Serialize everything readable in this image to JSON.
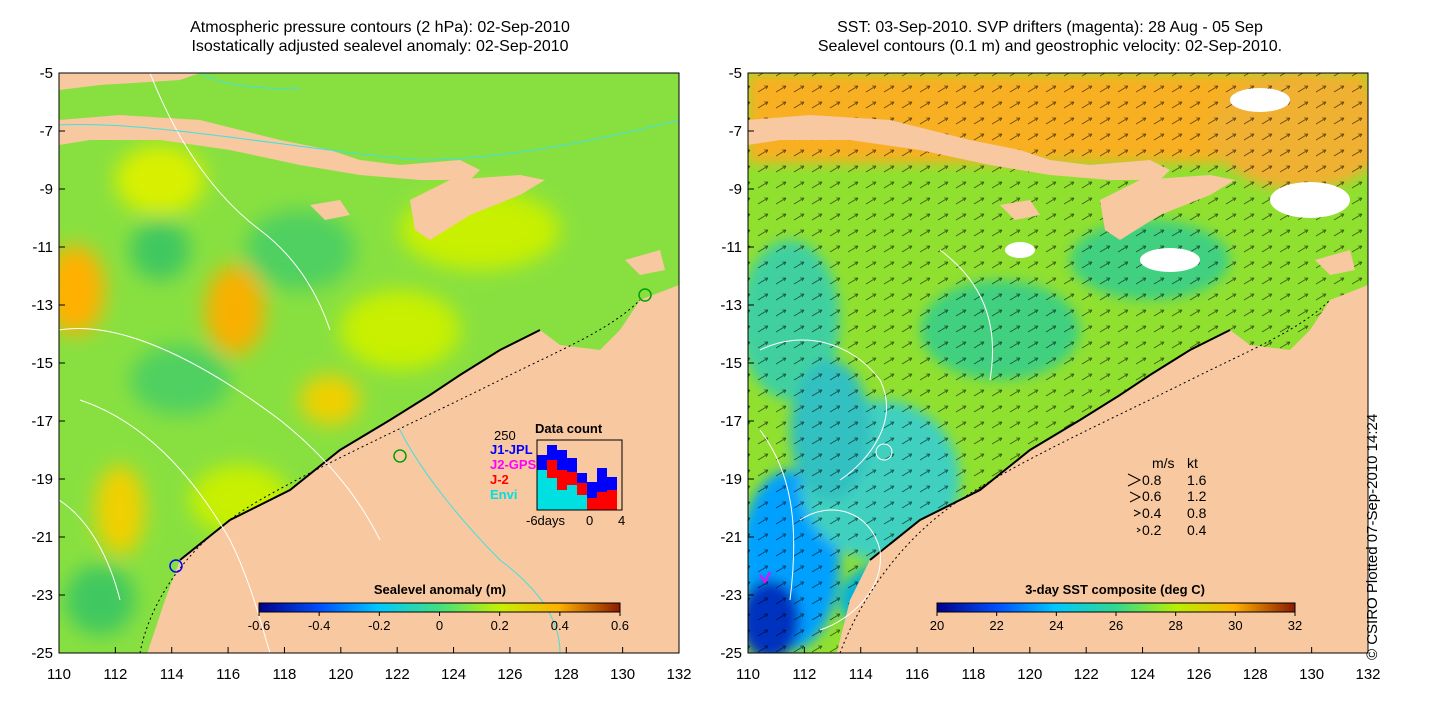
{
  "left_panel": {
    "title_line1": "Atmospheric pressure contours (2 hPa): 02-Sep-2010",
    "title_line2": "Isostatically adjusted sealevel anomaly: 02-Sep-2010",
    "colorbar": {
      "title": "Sealevel anomaly (m)",
      "ticks": [
        "-0.6",
        "-0.4",
        "-0.2",
        "0",
        "0.2",
        "0.4",
        "0.6"
      ],
      "colors": [
        "#00008b",
        "#0050ff",
        "#00c8ff",
        "#40e080",
        "#c8f000",
        "#ffb000",
        "#8b1a00"
      ]
    },
    "inset": {
      "title": "Data count",
      "max_label": "250",
      "missions": [
        {
          "name": "J1-JPL",
          "color": "#0000ff"
        },
        {
          "name": "J2-GPS",
          "color": "#ff00ff"
        },
        {
          "name": "J-2",
          "color": "#ff0000"
        },
        {
          "name": "Envi",
          "color": "#00e0e0"
        }
      ],
      "x_labels": [
        "-6days",
        "0",
        "4"
      ]
    }
  },
  "right_panel": {
    "title_line1": "SST: 03-Sep-2010. SVP drifters (magenta): 28 Aug - 05 Sep",
    "title_line2": "Sealevel contours (0.1 m) and geostrophic velocity: 02-Sep-2010.",
    "colorbar": {
      "title": "3-day SST composite (deg C)",
      "ticks": [
        "20",
        "22",
        "24",
        "26",
        "28",
        "30",
        "32"
      ],
      "colors": [
        "#00008b",
        "#0050ff",
        "#00c8ff",
        "#30d890",
        "#b8f000",
        "#ffb000",
        "#8b1a00"
      ]
    },
    "velocity_legend": {
      "header_ms": "m/s",
      "header_kt": "kt",
      "rows": [
        {
          "ms": "0.8",
          "kt": "1.6"
        },
        {
          "ms": "0.6",
          "kt": "1.2"
        },
        {
          "ms": "0.4",
          "kt": "0.8"
        },
        {
          "ms": "0.2",
          "kt": "0.4"
        }
      ]
    }
  },
  "axes": {
    "lat_ticks": [
      "-5",
      "-7",
      "-9",
      "-11",
      "-13",
      "-15",
      "-17",
      "-19",
      "-21",
      "-23",
      "-25"
    ],
    "lon_ticks": [
      "110",
      "112",
      "114",
      "116",
      "118",
      "120",
      "122",
      "124",
      "126",
      "128",
      "130",
      "132"
    ]
  },
  "credit": "© CSIRO Plotted 07-Sep-2010 14:24",
  "colors": {
    "land": "#f8c8a0",
    "ocean_base": "#88e040",
    "coast_contour": "#40e0e0",
    "contour_white": "#ffffff"
  }
}
